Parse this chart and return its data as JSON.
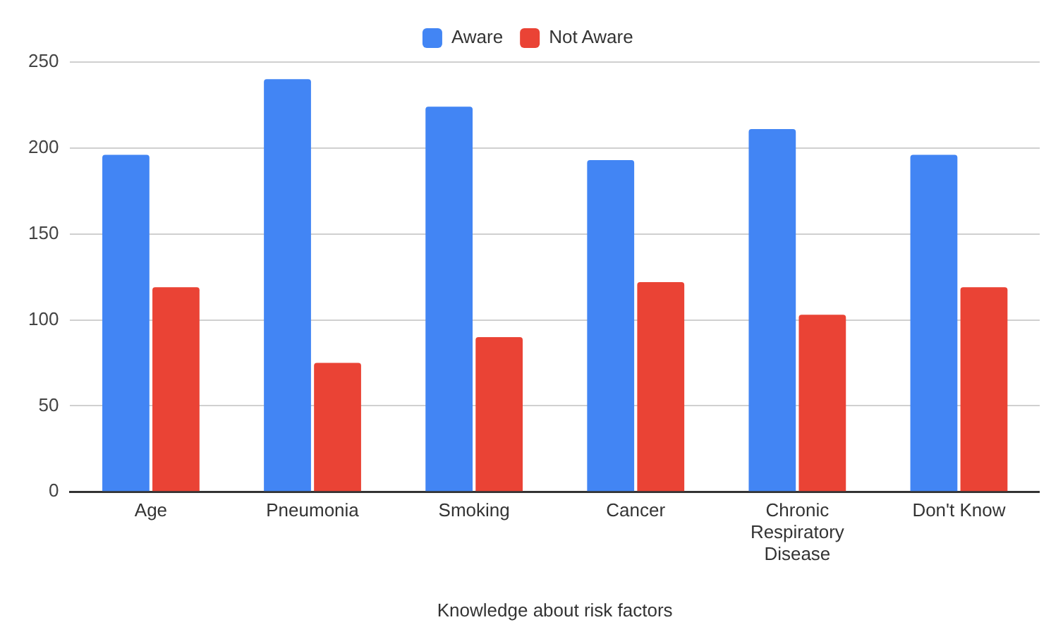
{
  "chart_data": {
    "type": "bar",
    "xlabel": "Knowledge about risk factors",
    "categories": [
      "Age",
      "Pneumonia",
      "Smoking",
      "Cancer",
      "Chronic Respiratory Disease",
      "Don't Know"
    ],
    "series": [
      {
        "name": "Aware",
        "color": "#4285f4",
        "values": [
          196,
          240,
          224,
          193,
          211,
          196
        ]
      },
      {
        "name": "Not Aware",
        "color": "#ea4335",
        "values": [
          119,
          75,
          90,
          122,
          103,
          119
        ]
      }
    ],
    "ylim": [
      0,
      250
    ],
    "yticks": [
      0,
      50,
      100,
      150,
      200,
      250
    ],
    "grid": "y",
    "legend": "top"
  }
}
